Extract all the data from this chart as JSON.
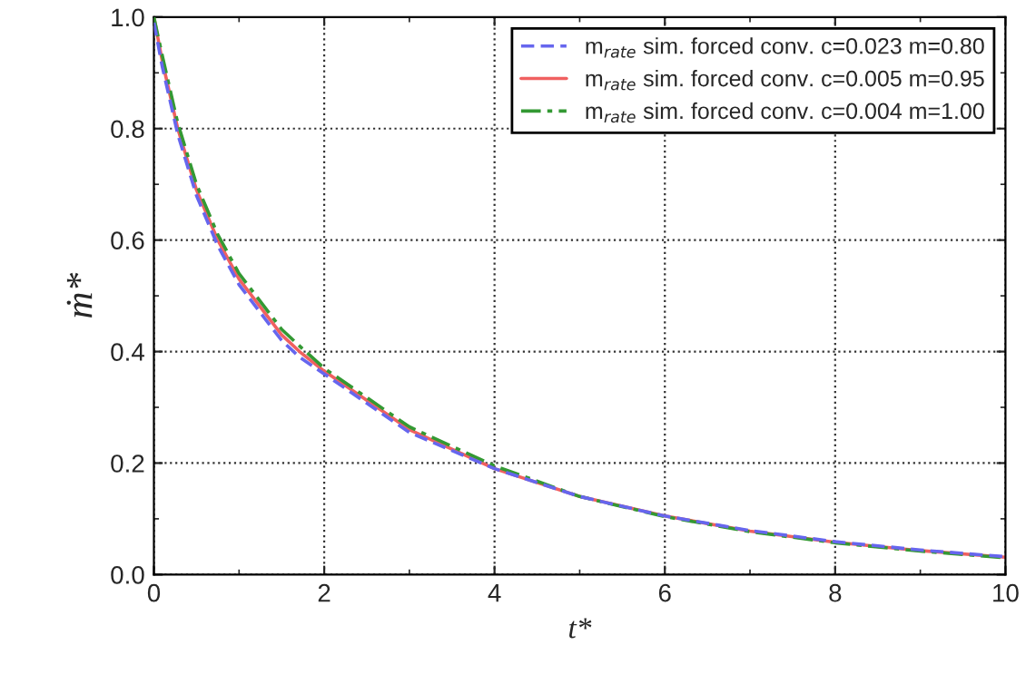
{
  "chart_data": {
    "type": "line",
    "xlabel": "t*",
    "ylabel": "ṁ*",
    "x": [
      0,
      0.1,
      0.28,
      0.5,
      0.75,
      1.0,
      1.5,
      1.71,
      2,
      3,
      4,
      5,
      6,
      7,
      8,
      9,
      10
    ],
    "series": [
      {
        "name": "m$_{rate}$ sim. forced conv. c=0.023 m=0.80",
        "color": "#6666ee",
        "line_style": "dashed",
        "values": [
          0.99,
          0.91,
          0.79,
          0.68,
          0.59,
          0.52,
          0.42,
          0.39,
          0.36,
          0.255,
          0.19,
          0.14,
          0.105,
          0.079,
          0.059,
          0.044,
          0.032
        ]
      },
      {
        "name": "m$_{rate}$ sim. forced conv. c=0.005 m=0.95",
        "color": "#f06060",
        "line_style": "solid",
        "values": [
          1.0,
          0.92,
          0.8,
          0.69,
          0.6,
          0.53,
          0.43,
          0.4,
          0.365,
          0.26,
          0.19,
          0.14,
          0.105,
          0.078,
          0.058,
          0.043,
          0.031
        ]
      },
      {
        "name": "m$_{rate}$ sim. forced conv. c=0.004 m=1.00",
        "color": "#339933",
        "line_style": "dashdot",
        "values": [
          1.0,
          0.93,
          0.81,
          0.7,
          0.61,
          0.54,
          0.44,
          0.41,
          0.37,
          0.265,
          0.195,
          0.14,
          0.104,
          0.077,
          0.057,
          0.042,
          0.03
        ]
      }
    ],
    "xlim": [
      0,
      10
    ],
    "xticks": [
      0,
      2,
      4,
      6,
      8,
      10
    ],
    "ylim": [
      0,
      1.0
    ],
    "yticks": [
      {
        "value": 0,
        "label": "0.0"
      },
      {
        "value": 0.2,
        "label": "0.2"
      },
      {
        "value": 0.4,
        "label": "0.4"
      },
      {
        "value": 0.6,
        "label": "0.6"
      },
      {
        "value": 0.8,
        "label": "0.8"
      },
      {
        "value": 1.0,
        "label": "1.0"
      }
    ],
    "grid": true,
    "legend": "top right"
  }
}
